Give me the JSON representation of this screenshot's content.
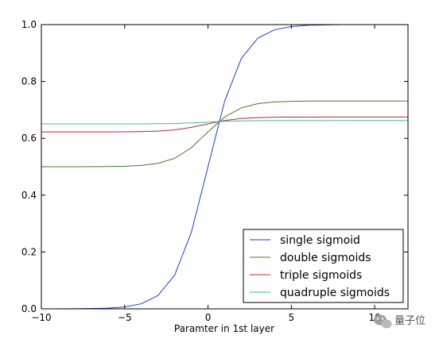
{
  "chart_data": {
    "type": "line",
    "title": "",
    "xlabel": "Paramter in 1st layer",
    "ylabel": "",
    "xlim": [
      -10,
      12
    ],
    "ylim": [
      0.0,
      1.0
    ],
    "xticks": [
      -10,
      -5,
      0,
      5,
      10
    ],
    "xtick_labels": [
      "−10",
      "−5",
      "0",
      "5",
      "10"
    ],
    "yticks": [
      0.0,
      0.2,
      0.4,
      0.6,
      0.8,
      1.0
    ],
    "ytick_labels": [
      "0.0",
      "0.2",
      "0.4",
      "0.6",
      "0.8",
      "1.0"
    ],
    "grid": false,
    "legend_position": "bottom-right",
    "x": [
      -10,
      -9,
      -8,
      -7,
      -6,
      -5,
      -4,
      -3,
      -2,
      -1,
      0,
      1,
      2,
      3,
      4,
      5,
      6,
      7,
      8,
      9,
      10,
      11,
      12
    ],
    "series": [
      {
        "name": "single sigmoid",
        "color": "#1f3fbf",
        "values": [
          5e-05,
          0.00012,
          0.00034,
          0.00091,
          0.0025,
          0.0067,
          0.018,
          0.047,
          0.119,
          0.269,
          0.5,
          0.731,
          0.881,
          0.953,
          0.982,
          0.993,
          0.998,
          0.999,
          1.0,
          1.0,
          1.0,
          1.0,
          1.0
        ]
      },
      {
        "name": "double sigmoids",
        "color": "#4a7a2a",
        "values": [
          0.5,
          0.5,
          0.5001,
          0.5002,
          0.5006,
          0.5017,
          0.5045,
          0.5118,
          0.5297,
          0.5669,
          0.6225,
          0.675,
          0.707,
          0.722,
          0.728,
          0.73,
          0.731,
          0.731,
          0.731,
          0.731,
          0.731,
          0.731,
          0.731
        ]
      },
      {
        "name": "triple sigmoids",
        "color": "#b82a2a",
        "values": [
          0.6225,
          0.6225,
          0.6225,
          0.6225,
          0.6226,
          0.6229,
          0.6235,
          0.6253,
          0.6297,
          0.6387,
          0.6508,
          0.6626,
          0.6696,
          0.6728,
          0.6741,
          0.6745,
          0.6747,
          0.6748,
          0.6748,
          0.6748,
          0.6748,
          0.6748,
          0.6748
        ]
      },
      {
        "name": "quadruple sigmoids",
        "color": "#3fb8b0",
        "values": [
          0.6508,
          0.6508,
          0.6508,
          0.6508,
          0.6508,
          0.6509,
          0.651,
          0.6514,
          0.6524,
          0.6544,
          0.6572,
          0.6598,
          0.6614,
          0.6621,
          0.6624,
          0.6625,
          0.6625,
          0.6625,
          0.6626,
          0.6626,
          0.6626,
          0.6626,
          0.6626
        ]
      }
    ]
  },
  "watermark": {
    "icon": "wechat-icon",
    "text": "量子位"
  }
}
